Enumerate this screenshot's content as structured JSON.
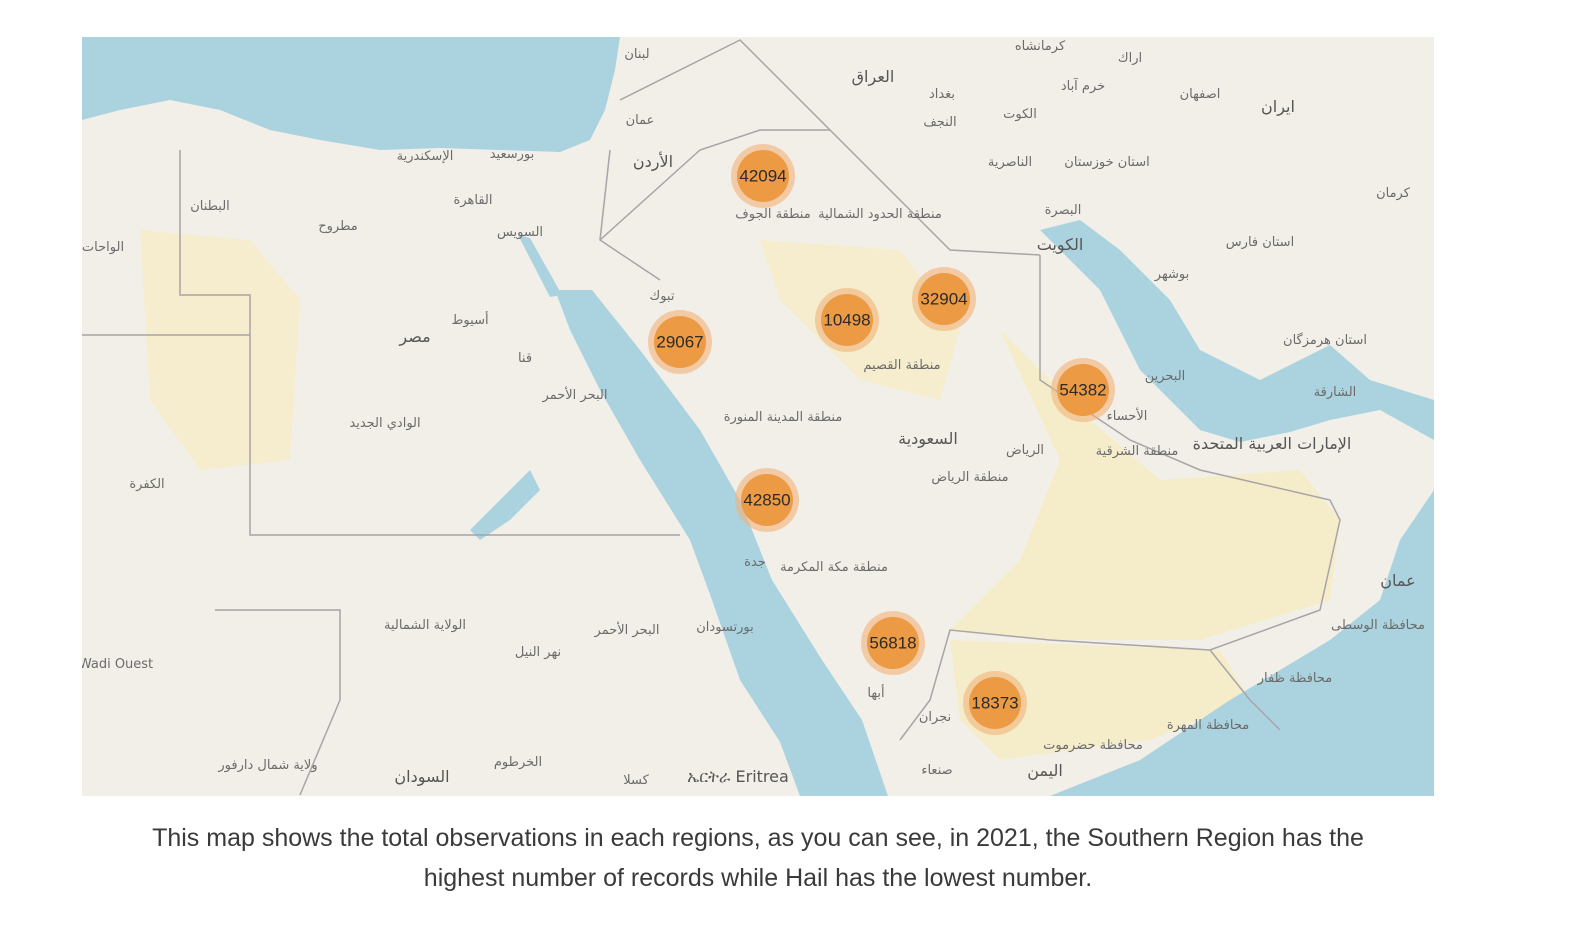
{
  "map": {
    "colors": {
      "water": "#aad3df",
      "land": "#f2efe9",
      "sand": "#f5ecc7",
      "border": "#a8a4a8",
      "cluster_fill": "#ec9a43",
      "cluster_halo": "#f2b27a"
    },
    "clusters": [
      {
        "value": "42094"
      },
      {
        "value": "29067"
      },
      {
        "value": "10498"
      },
      {
        "value": "32904"
      },
      {
        "value": "54382"
      },
      {
        "value": "42850"
      },
      {
        "value": "56818"
      },
      {
        "value": "18373"
      }
    ],
    "labels": [
      "لبنان",
      "العراق",
      "بغداد",
      "كرمانشاه",
      "اراك",
      "خرم آباد",
      "اصفهان",
      "ايران",
      "الكوت",
      "النجف",
      "عمان",
      "الأردن",
      "الناصرية",
      "استان خوزستان",
      "البصرة",
      "الكويت",
      "بوشهر",
      "استان فارس",
      "كرمان",
      "الإسكندرية",
      "بورسعيد",
      "القاهرة",
      "السويس",
      "البطنان",
      "مطروح",
      "الواحات",
      "تبوك",
      "أسيوط",
      "مصر",
      "قنا",
      "البحر الأحمر",
      "الوادي الجديد",
      "منطقة الجوف",
      "منطقة الحدود الشمالية",
      "منطقة القصيم",
      "منطقة المدينة المنورة",
      "السعودية",
      "الرياض",
      "منطقة الرياض",
      "الأحساء",
      "البحرين",
      "منطقة الشرقية",
      "الإمارات العربية المتحدة",
      "الشارقة",
      "استان هرمزگان",
      "الكفرة",
      "جدة",
      "منطقة مكة المكرمة",
      "عمان",
      "محافظة الوسطى",
      "الولاية الشمالية",
      "البحر الأحمر",
      "بورتسودان",
      "نهر النيل",
      "أبها",
      "نجران",
      "محافظة ظفار",
      "محافظة المهرة",
      "محافظة حضرموت",
      "اليمن",
      "صنعاء",
      "الخرطوم",
      "السودان",
      "ولاية شمال دارفور",
      "ኤርትራ Eritrea",
      "كسلا",
      "Wadi Ouest"
    ]
  },
  "caption": {
    "line1": "This map shows the total observations in each regions, as you can see, in 2021, the Southern Region has the",
    "line2": "highest number of records while Hail has the lowest number."
  }
}
